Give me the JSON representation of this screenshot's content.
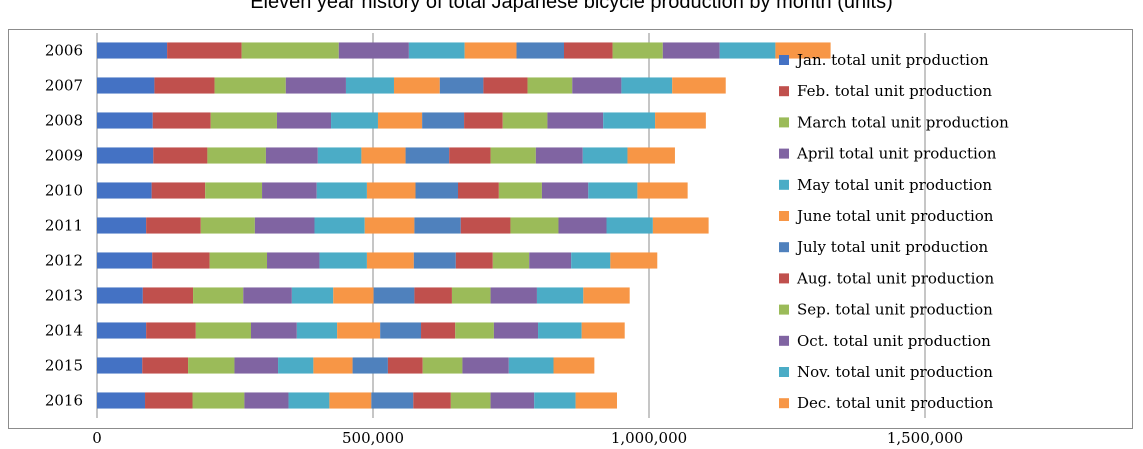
{
  "chart_data": {
    "type": "bar",
    "orientation": "horizontal",
    "stacked": true,
    "title": "Eleven year history of total Japanese bicycle production by month (units)",
    "xlabel": "",
    "ylabel": "",
    "xlim": [
      0,
      1500000
    ],
    "x_ticks": [
      0,
      500000,
      1000000,
      1500000
    ],
    "x_tick_labels": [
      "0",
      "500,000",
      "1,000,000",
      "1,500,000"
    ],
    "grid": "vertical major gridlines",
    "legend_position": "right",
    "categories": [
      "2006",
      "2007",
      "2008",
      "2009",
      "2010",
      "2011",
      "2012",
      "2013",
      "2014",
      "2015",
      "2016"
    ],
    "series": [
      {
        "name": "Jan. total unit production",
        "color": "#4472C4",
        "values": [
          127000,
          104000,
          101000,
          102000,
          99000,
          89000,
          100000,
          83000,
          89000,
          82000,
          87000
        ]
      },
      {
        "name": "Feb. total unit production",
        "color": "#C0504D",
        "values": [
          135000,
          109000,
          105000,
          98000,
          97000,
          99000,
          104000,
          91000,
          90000,
          83000,
          86000
        ]
      },
      {
        "name": "March total unit production",
        "color": "#9BBB59",
        "values": [
          176000,
          129000,
          120000,
          106000,
          103000,
          98000,
          104000,
          91000,
          100000,
          84000,
          94000
        ]
      },
      {
        "name": "April total unit production",
        "color": "#8064A2",
        "values": [
          127000,
          109000,
          98000,
          94000,
          99000,
          108000,
          95000,
          88000,
          83000,
          79000,
          80000
        ]
      },
      {
        "name": "May total unit production",
        "color": "#4BACC6",
        "values": [
          101000,
          87000,
          85000,
          79000,
          91000,
          91000,
          86000,
          75000,
          73000,
          64000,
          74000
        ]
      },
      {
        "name": "June total unit production",
        "color": "#F79646",
        "values": [
          94000,
          83000,
          80000,
          80000,
          88000,
          90000,
          85000,
          73000,
          78000,
          71000,
          76000
        ]
      },
      {
        "name": "July total unit production",
        "color": "#4F81BD",
        "values": [
          86000,
          79000,
          76000,
          79000,
          77000,
          84000,
          76000,
          74000,
          74000,
          64000,
          76000
        ]
      },
      {
        "name": "Aug. total unit production",
        "color": "#C0504D",
        "values": [
          88000,
          80000,
          70000,
          75000,
          74000,
          90000,
          67000,
          68000,
          62000,
          63000,
          68000
        ]
      },
      {
        "name": "Sep. total unit production",
        "color": "#9BBB59",
        "values": [
          91000,
          81000,
          81000,
          82000,
          78000,
          87000,
          66000,
          70000,
          70000,
          72000,
          72000
        ]
      },
      {
        "name": "Oct. total unit production",
        "color": "#8064A2",
        "values": [
          103000,
          89000,
          101000,
          85000,
          84000,
          87000,
          76000,
          84000,
          80000,
          84000,
          79000
        ]
      },
      {
        "name": "Nov. total unit production",
        "color": "#4BACC6",
        "values": [
          101000,
          92000,
          94000,
          81000,
          89000,
          84000,
          71000,
          84000,
          79000,
          81000,
          75000
        ]
      },
      {
        "name": "Dec. total unit production",
        "color": "#F79646",
        "values": [
          100000,
          97000,
          92000,
          86000,
          91000,
          101000,
          85000,
          84000,
          78000,
          74000,
          75000
        ]
      }
    ]
  }
}
